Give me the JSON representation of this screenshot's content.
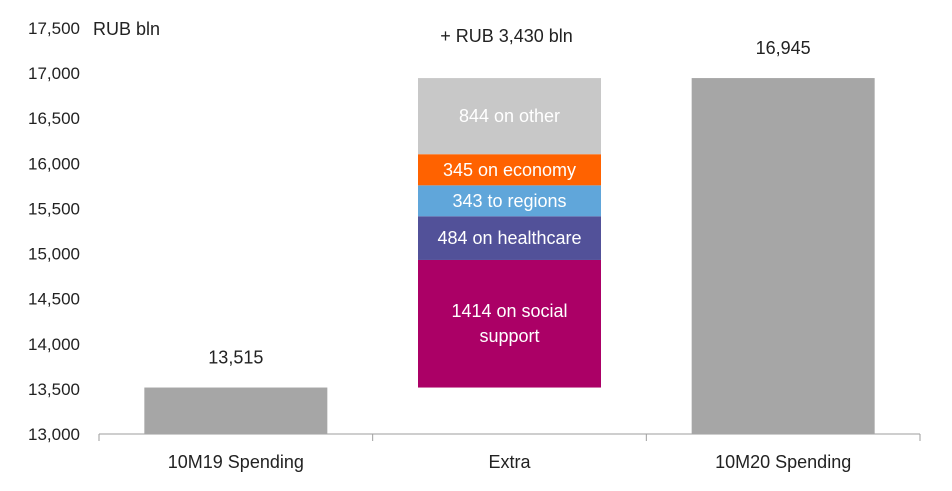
{
  "chart_data": {
    "type": "bar",
    "subtype": "waterfall",
    "unit_label": "RUB bln",
    "ylim": [
      13000,
      17500
    ],
    "y_ticks": [
      13000,
      13500,
      14000,
      14500,
      15000,
      15500,
      16000,
      16500,
      17000,
      17500
    ],
    "y_tick_labels": [
      "13,000",
      "13,500",
      "14,000",
      "14,500",
      "15,000",
      "15,500",
      "16,000",
      "16,500",
      "17,000",
      "17,500"
    ],
    "grid": false,
    "categories": [
      "10M19 Spending",
      "Extra",
      "10M20 Spending"
    ],
    "totals": [
      {
        "category": "10M19 Spending",
        "value": 13515,
        "label": "13,515",
        "color": "#a6a6a6"
      },
      {
        "category": "10M20 Spending",
        "value": 16945,
        "label": "16,945",
        "color": "#a6a6a6"
      }
    ],
    "extra": {
      "category": "Extra",
      "base": 13515,
      "total_label": "+ RUB 3,430 bln",
      "segments": [
        {
          "value": 1414,
          "label_lines": [
            "1414 on social",
            "support"
          ],
          "color": "#ab0066"
        },
        {
          "value": 484,
          "label_lines": [
            "484 on healthcare"
          ],
          "color": "#525199"
        },
        {
          "value": 343,
          "label_lines": [
            "343 to regions"
          ],
          "color": "#60a6da"
        },
        {
          "value": 345,
          "label_lines": [
            "345 on economy"
          ],
          "color": "#ff6200"
        },
        {
          "value": 844,
          "label_lines": [
            "844 on other"
          ],
          "color": "#c8c8c8"
        }
      ]
    }
  }
}
